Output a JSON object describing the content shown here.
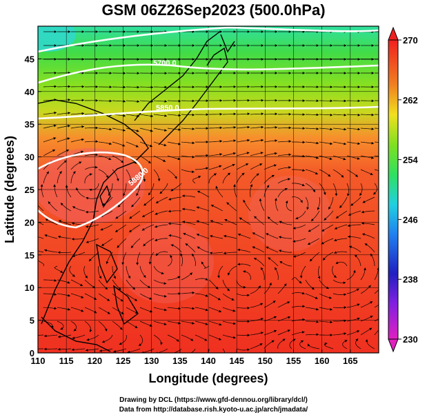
{
  "title": "GSM 06Z26Sep2023 (500.0hPa)",
  "x_axis": {
    "label": "Longitude (degrees)",
    "ticks": [
      "110",
      "115",
      "120",
      "125",
      "130",
      "135",
      "140",
      "145",
      "150",
      "155",
      "160",
      "165"
    ]
  },
  "y_axis": {
    "label": "Latitude  (degrees)",
    "ticks": [
      "0",
      "5",
      "10",
      "15",
      "20",
      "25",
      "30",
      "35",
      "40",
      "45"
    ]
  },
  "colorbar": {
    "ticks": [
      "230",
      "238",
      "246",
      "254",
      "262",
      "270"
    ]
  },
  "contours": [
    {
      "label": "5700.0"
    },
    {
      "label": "5850.0"
    },
    {
      "label": "5880.0"
    }
  ],
  "credits": {
    "line1": "Drawing by DCL (https://www.gfd-dennou.org/library/dcl/)",
    "line2": "Data from http://database.rish.kyoto-u.ac.jp/arch/jmadata/"
  }
}
